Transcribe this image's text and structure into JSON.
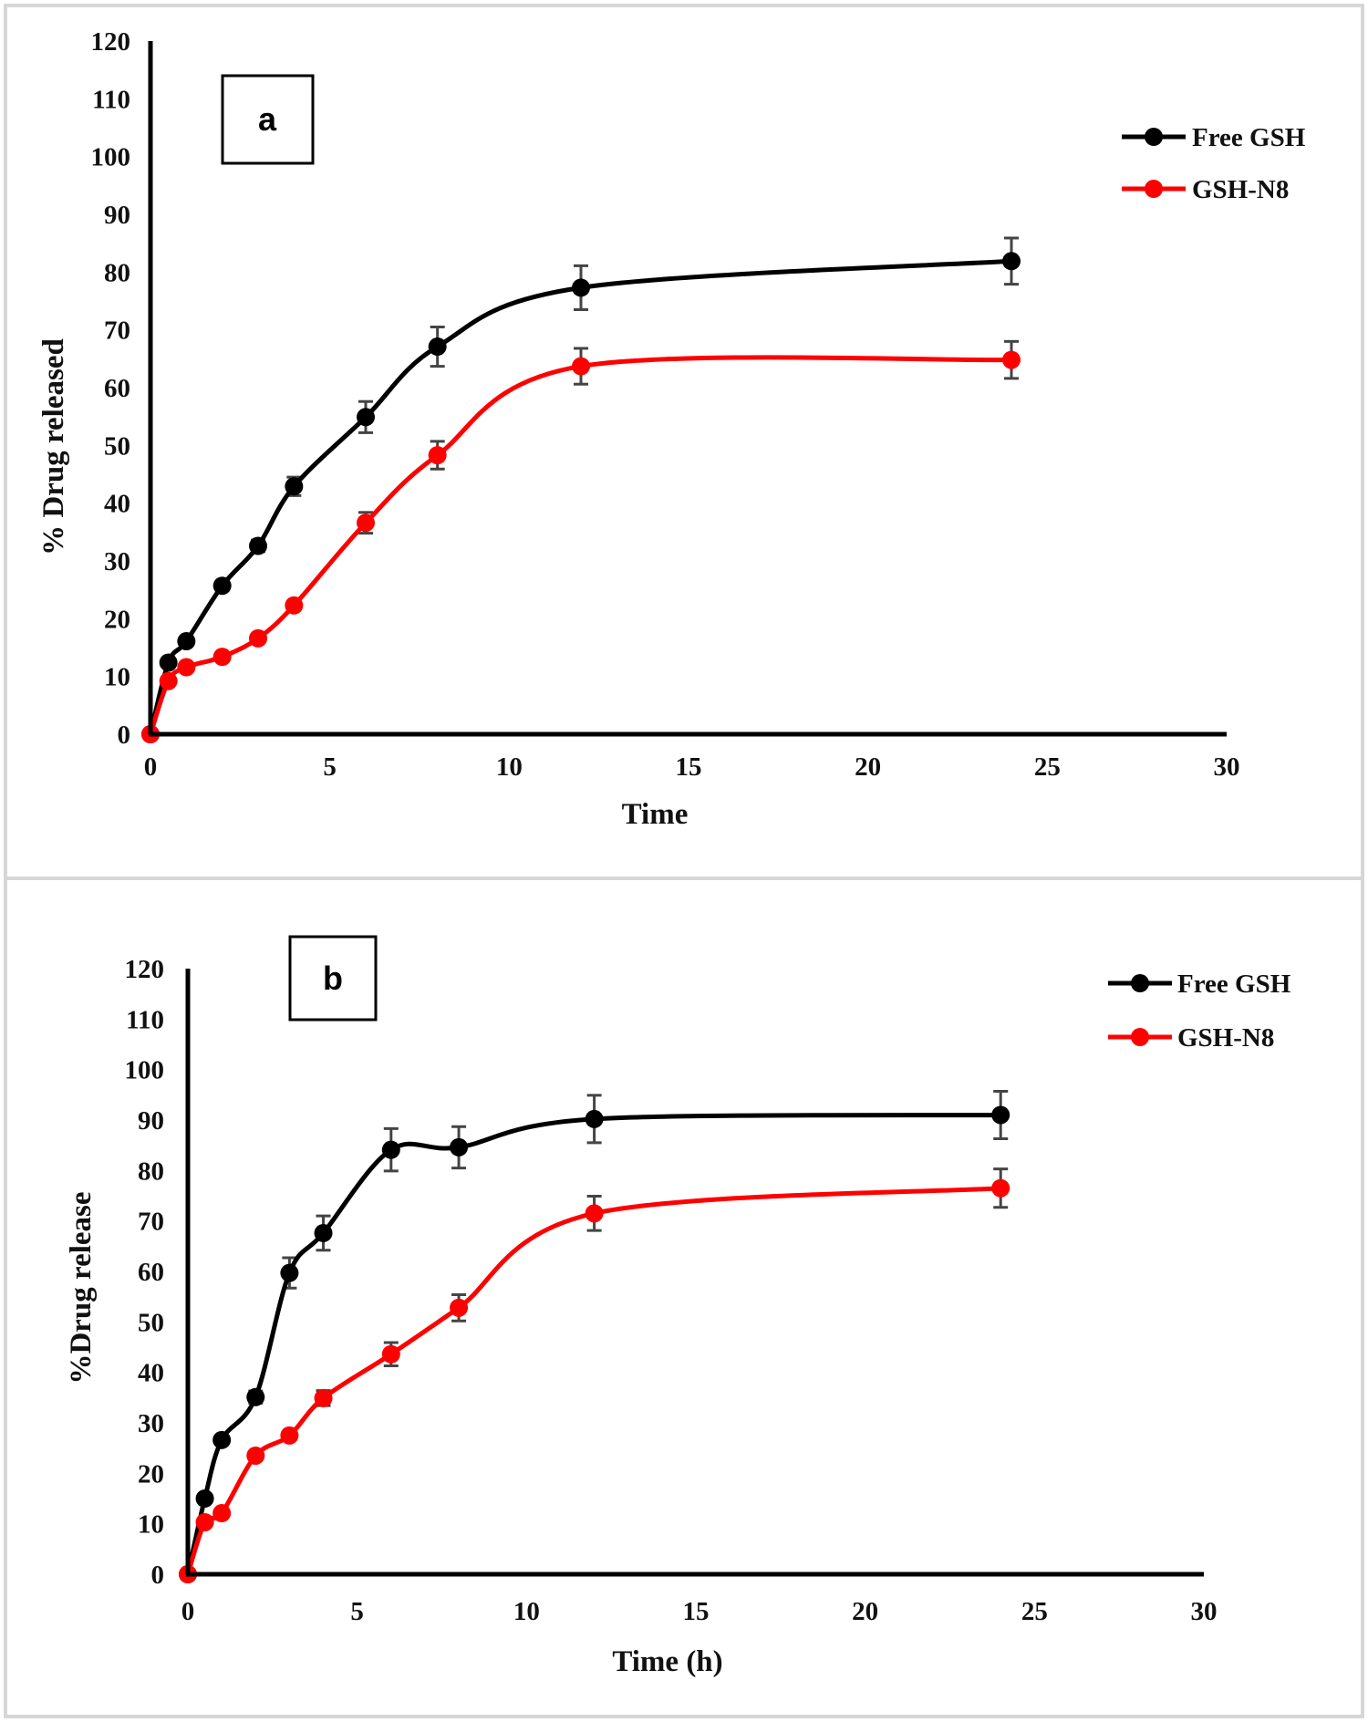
{
  "chart_data": [
    {
      "type": "line",
      "panel_label": "a",
      "title": "",
      "xlabel": "Time",
      "ylabel": "% Drug released",
      "xlim": [
        0,
        30
      ],
      "ylim": [
        0,
        120
      ],
      "xticks": [
        0,
        5,
        10,
        15,
        20,
        25,
        30
      ],
      "yticks": [
        0,
        10,
        20,
        30,
        40,
        50,
        60,
        70,
        80,
        90,
        100,
        110,
        120
      ],
      "grid": false,
      "legend_position": "top-right",
      "x": [
        0,
        0.5,
        1,
        2,
        3,
        4,
        6,
        8,
        12,
        24
      ],
      "series": [
        {
          "name": "Free GSH",
          "color": "#000000",
          "values": [
            0,
            12.4,
            16.1,
            25.7,
            32.6,
            42.9,
            54.9,
            67.1,
            77.3,
            81.9
          ],
          "errors": [
            0,
            0.6,
            0.6,
            0.8,
            1.0,
            1.6,
            2.7,
            3.4,
            3.8,
            4.0
          ]
        },
        {
          "name": "GSH-N8",
          "color": "#ff0000",
          "values": [
            0,
            9.2,
            11.6,
            13.4,
            16.6,
            22.3,
            36.6,
            48.3,
            63.7,
            64.8
          ],
          "errors": [
            0,
            0.4,
            0.4,
            0.5,
            0.6,
            0.8,
            1.8,
            2.4,
            3.1,
            3.2
          ]
        }
      ]
    },
    {
      "type": "line",
      "panel_label": "b",
      "title": "",
      "xlabel": "Time (h)",
      "ylabel": "%Drug release",
      "xlim": [
        0,
        30
      ],
      "ylim": [
        0,
        120
      ],
      "xticks": [
        0,
        5,
        10,
        15,
        20,
        25,
        30
      ],
      "yticks": [
        0,
        10,
        20,
        30,
        40,
        50,
        60,
        70,
        80,
        90,
        100,
        110,
        120
      ],
      "grid": false,
      "legend_position": "top-right",
      "x": [
        0,
        0.5,
        1,
        2,
        3,
        4,
        6,
        8,
        12,
        24
      ],
      "series": [
        {
          "name": "Free GSH",
          "color": "#000000",
          "values": [
            0,
            15.0,
            26.6,
            35.1,
            59.7,
            67.6,
            84.1,
            84.6,
            90.2,
            91.0
          ],
          "errors": [
            0,
            0.6,
            0.8,
            1.2,
            3.0,
            3.4,
            4.2,
            4.1,
            4.7,
            4.7
          ]
        },
        {
          "name": "GSH-N8",
          "color": "#ff0000",
          "values": [
            0,
            10.3,
            12.1,
            23.5,
            27.5,
            34.9,
            43.6,
            52.8,
            71.5,
            76.5
          ],
          "errors": [
            0,
            0.5,
            0.5,
            0.7,
            0.8,
            1.5,
            2.3,
            2.6,
            3.4,
            3.8
          ]
        }
      ]
    }
  ]
}
